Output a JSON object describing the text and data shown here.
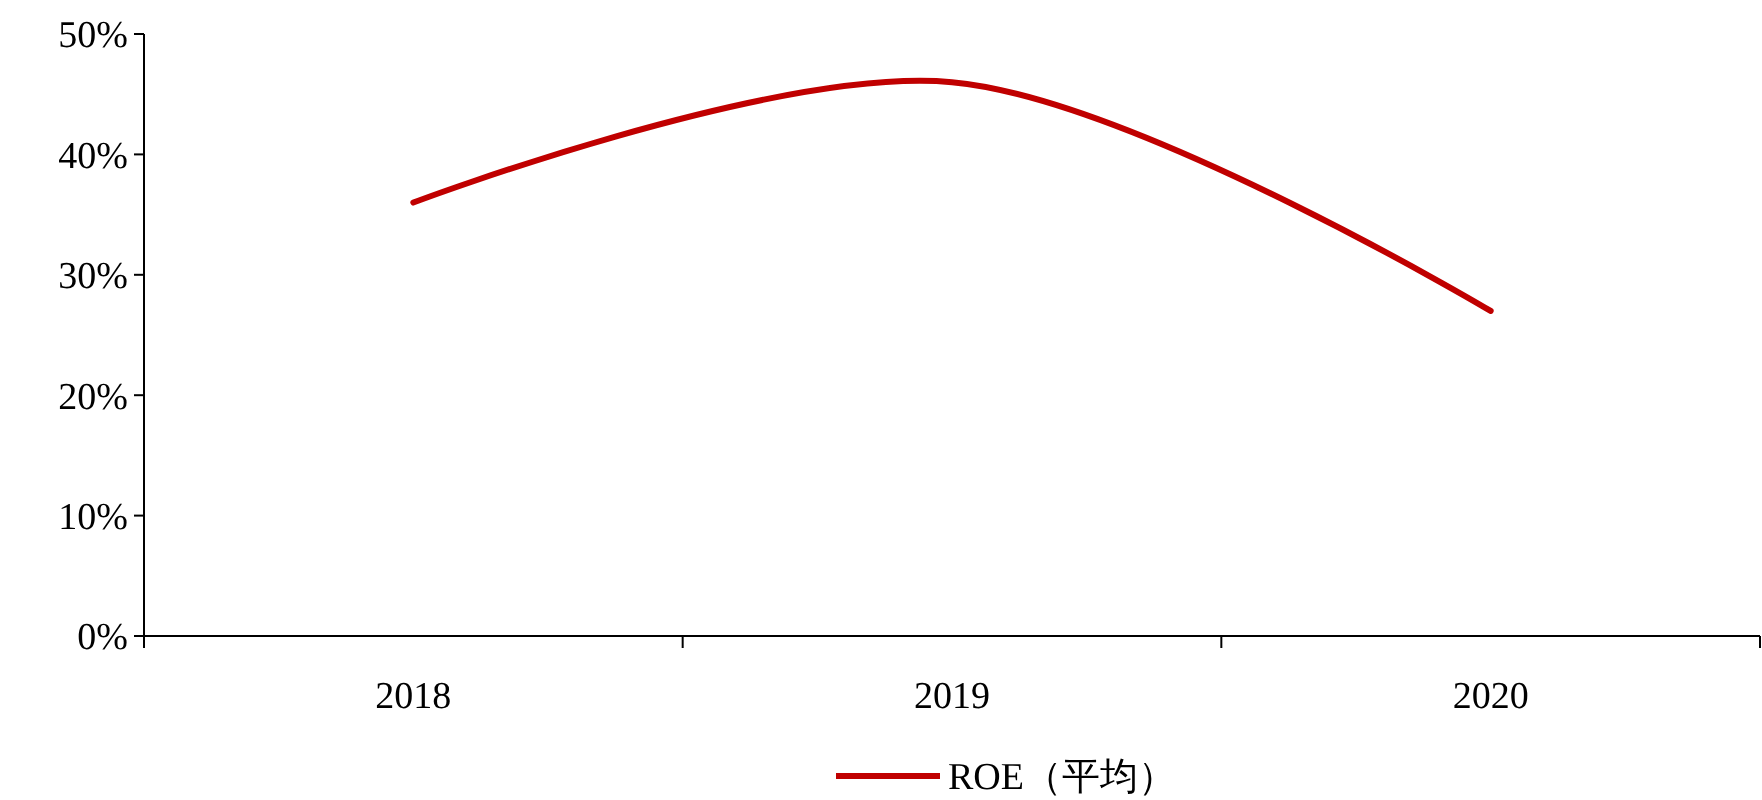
{
  "chart_data": {
    "type": "line",
    "categories": [
      "2018",
      "2019",
      "2020"
    ],
    "series": [
      {
        "name": "ROE（平均）",
        "color": "#c00000",
        "values": [
          36,
          46,
          27
        ]
      }
    ],
    "ylim": [
      0,
      50
    ],
    "yticks": [
      {
        "value": 0,
        "label": "0%"
      },
      {
        "value": 10,
        "label": "10%"
      },
      {
        "value": 20,
        "label": "20%"
      },
      {
        "value": 30,
        "label": "30%"
      },
      {
        "value": 40,
        "label": "40%"
      },
      {
        "value": 50,
        "label": "50%"
      }
    ],
    "grid": false,
    "legend": "bottom",
    "marker": "none",
    "line_style": "solid"
  }
}
